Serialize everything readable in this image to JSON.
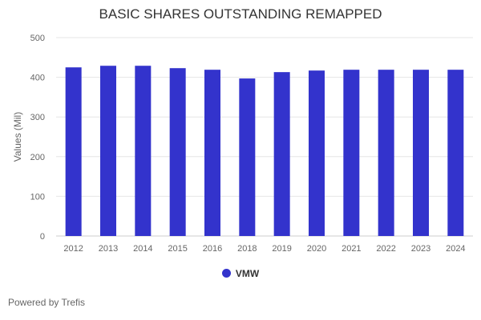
{
  "chart_data": {
    "type": "bar",
    "title": "BASIC SHARES OUTSTANDING REMAPPED",
    "xlabel": "",
    "ylabel": "Values (Mil)",
    "ylim": [
      0,
      500
    ],
    "yticks": [
      0,
      100,
      200,
      300,
      400,
      500
    ],
    "grid": true,
    "legend_position": "bottom",
    "categories": [
      "2012",
      "2013",
      "2014",
      "2015",
      "2016",
      "2018",
      "2019",
      "2020",
      "2021",
      "2022",
      "2023",
      "2024"
    ],
    "series": [
      {
        "name": "VMW",
        "color": "#3333cc",
        "values": [
          425,
          429,
          429,
          423,
          419,
          397,
          413,
          417,
          419,
          419,
          419,
          419
        ]
      }
    ]
  },
  "footer": "Powered by Trefis"
}
